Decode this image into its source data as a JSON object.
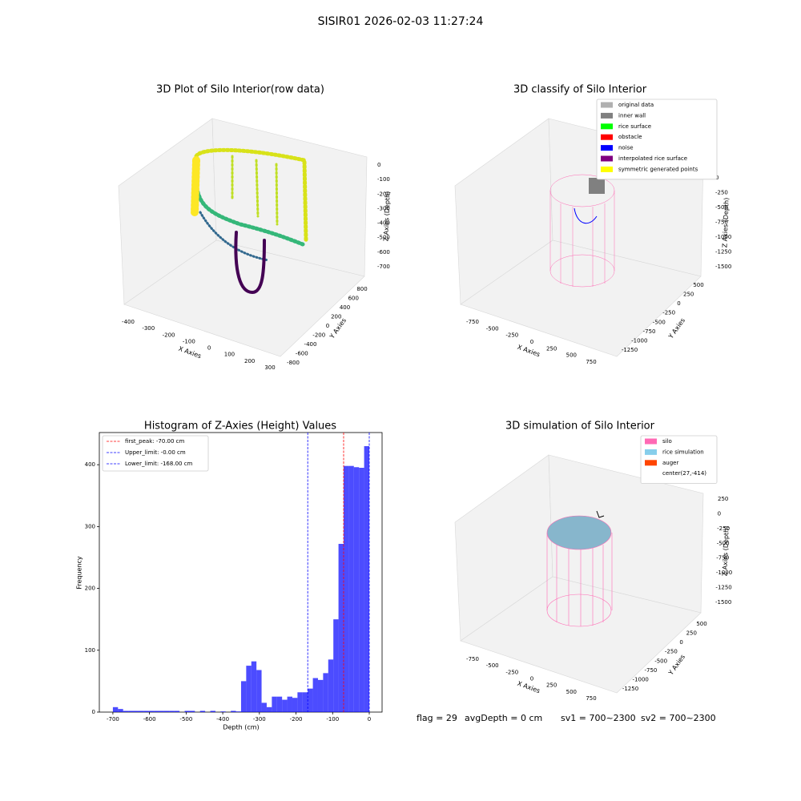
{
  "title": "SISIR01 2026-02-03 11:27:24",
  "chart_data": [
    {
      "type": "scatter3d",
      "title": "3D Plot of Silo Interior(row data)",
      "x_label": "X Axies",
      "y_label": "Y Axies",
      "z_label": "Z Axies (Depth)",
      "xticks": [
        -400,
        -300,
        -200,
        -100,
        0,
        100,
        200,
        300
      ],
      "yticks": [
        -800,
        -600,
        -400,
        -200,
        0,
        200,
        400,
        600,
        800
      ],
      "zticks": [
        -700,
        -600,
        -500,
        -400,
        -300,
        -200,
        -100,
        0
      ]
    },
    {
      "type": "scatter3d",
      "title": "3D classify of Silo Interior",
      "x_label": "X Axies",
      "y_label": "Y Axies",
      "z_label": "Z Axies (Depth)",
      "xticks": [
        -750,
        -500,
        -250,
        0,
        250,
        500,
        750
      ],
      "yticks": [
        -1250,
        -1000,
        -750,
        -500,
        -250,
        0,
        250,
        500
      ],
      "zticks": [
        -1500,
        -1250,
        -1000,
        -750,
        -500,
        -250,
        0
      ],
      "legend": [
        {
          "name": "original data",
          "color": "#b0b0b0"
        },
        {
          "name": "inner wall",
          "color": "#808080"
        },
        {
          "name": "rice surface",
          "color": "#00ff00"
        },
        {
          "name": "obstacle",
          "color": "#ff0000"
        },
        {
          "name": "noise",
          "color": "#0000ff"
        },
        {
          "name": "interpolated rice surface",
          "color": "#800080"
        },
        {
          "name": "symmetric generated points",
          "color": "#ffff00"
        }
      ]
    },
    {
      "type": "histogram",
      "title": "Histogram of Z-Axies (Height) Values",
      "x_label": "Depth (cm)",
      "y_label": "Frequency",
      "color": "#0000ff",
      "bins": [
        -700,
        -686,
        -672,
        -658,
        -644,
        -630,
        -616,
        -602,
        -588,
        -574,
        -560,
        -546,
        -532,
        -518,
        -504,
        -490,
        -476,
        -462,
        -448,
        -434,
        -420,
        -406,
        -392,
        -378,
        -364,
        -350,
        -336,
        -322,
        -308,
        -294,
        -280,
        -266,
        -252,
        -238,
        -224,
        -210,
        -196,
        -182,
        -168,
        -154,
        -140,
        -126,
        -112,
        -98,
        -84,
        -70,
        -56,
        -42,
        -28,
        -14,
        0
      ],
      "values": [
        8,
        5,
        2,
        2,
        2,
        2,
        2,
        2,
        2,
        2,
        2,
        2,
        2,
        0,
        2,
        2,
        0,
        2,
        0,
        2,
        0,
        1,
        0,
        2,
        1,
        50,
        75,
        82,
        68,
        15,
        8,
        25,
        25,
        20,
        25,
        23,
        32,
        32,
        38,
        55,
        52,
        63,
        85,
        150,
        272,
        398,
        398,
        396,
        395,
        430
      ],
      "xlim": [
        -737,
        35
      ],
      "ylim": [
        0,
        452
      ],
      "xticks": [
        -700,
        -600,
        -500,
        -400,
        -300,
        -200,
        -100,
        0
      ],
      "yticks": [
        0,
        100,
        200,
        300,
        400
      ],
      "lines": [
        {
          "name": "first_peak: -70.00 cm",
          "value": -70,
          "color": "#ff0000"
        },
        {
          "name": "Upper_limit: -0.00 cm",
          "value": 0,
          "color": "#0000ff"
        },
        {
          "name": "Lower_limit: -168.00 cm",
          "value": -168,
          "color": "#0000ff"
        }
      ]
    },
    {
      "type": "surface3d",
      "title": "3D simulation of Silo Interior",
      "x_label": "X Axies",
      "y_label": "Y Axies",
      "z_label": "Z Axies (Depth)",
      "xticks": [
        -750,
        -500,
        -250,
        0,
        250,
        500,
        750
      ],
      "yticks": [
        -1250,
        -1000,
        -750,
        -500,
        -250,
        0,
        250,
        500
      ],
      "zticks": [
        -1500,
        -1250,
        -1000,
        -750,
        -500,
        -250,
        0,
        250
      ],
      "legend": [
        {
          "name": "silo",
          "color": "#ff69b4"
        },
        {
          "name": "rice simulation",
          "color": "#87ceeb"
        },
        {
          "name": "auger",
          "color": "#ff4500"
        },
        {
          "name": "center(27,-414)"
        }
      ]
    }
  ],
  "status": [
    "flag = 29",
    "avgDepth = 0 cm",
    "sv1 = 700~2300",
    "sv2 = 700~2300"
  ]
}
